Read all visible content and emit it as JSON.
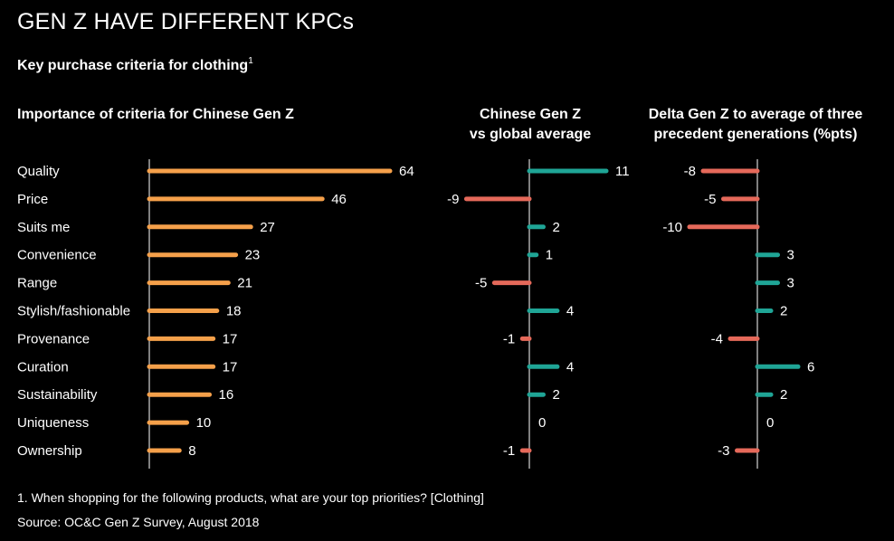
{
  "title": "GEN Z HAVE DIFFERENT KPCs",
  "subtitle": "Key purchase criteria for clothing",
  "subtitle_footnote_marker": "1",
  "panel_headings": {
    "importance": "Importance of criteria for Chinese Gen Z",
    "global": [
      "Chinese Gen Z",
      "vs global average"
    ],
    "delta": [
      "Delta Gen Z to average of three",
      "precedent generations (%pts)"
    ]
  },
  "footnote": "1. When shopping for the following products, what are your top priorities? [Clothing]",
  "source": "Source: OC&C Gen Z Survey, August 2018",
  "colors": {
    "orange": "#F5A04A",
    "teal": "#1FA596",
    "red": "#E5695A",
    "axis": "#ffffff",
    "background": "#000000"
  },
  "chart_data": [
    {
      "type": "bar",
      "orientation": "horizontal",
      "title": "Importance of criteria for Chinese Gen Z",
      "categories": [
        "Quality",
        "Price",
        "Suits me",
        "Convenience",
        "Range",
        "Stylish/fashionable",
        "Provenance",
        "Curation",
        "Sustainability",
        "Uniqueness",
        "Ownership"
      ],
      "values": [
        64,
        46,
        27,
        23,
        21,
        18,
        17,
        17,
        16,
        10,
        8
      ],
      "xlim": [
        0,
        64
      ]
    },
    {
      "type": "bar",
      "orientation": "horizontal",
      "title": "Chinese Gen Z vs global average",
      "categories": [
        "Quality",
        "Price",
        "Suits me",
        "Convenience",
        "Range",
        "Stylish/fashionable",
        "Provenance",
        "Curation",
        "Sustainability",
        "Uniqueness",
        "Ownership"
      ],
      "values": [
        11,
        -9,
        2,
        1,
        -5,
        4,
        -1,
        4,
        2,
        0,
        -1
      ],
      "positive_color": "teal",
      "negative_color": "red"
    },
    {
      "type": "bar",
      "orientation": "horizontal",
      "title": "Delta Gen Z to average of three precedent generations (%pts)",
      "categories": [
        "Quality",
        "Price",
        "Suits me",
        "Convenience",
        "Range",
        "Stylish/fashionable",
        "Provenance",
        "Curation",
        "Sustainability",
        "Uniqueness",
        "Ownership"
      ],
      "values": [
        -8,
        -5,
        -10,
        3,
        3,
        2,
        -4,
        6,
        2,
        0,
        -3
      ],
      "positive_color": "teal",
      "negative_color": "red"
    }
  ]
}
